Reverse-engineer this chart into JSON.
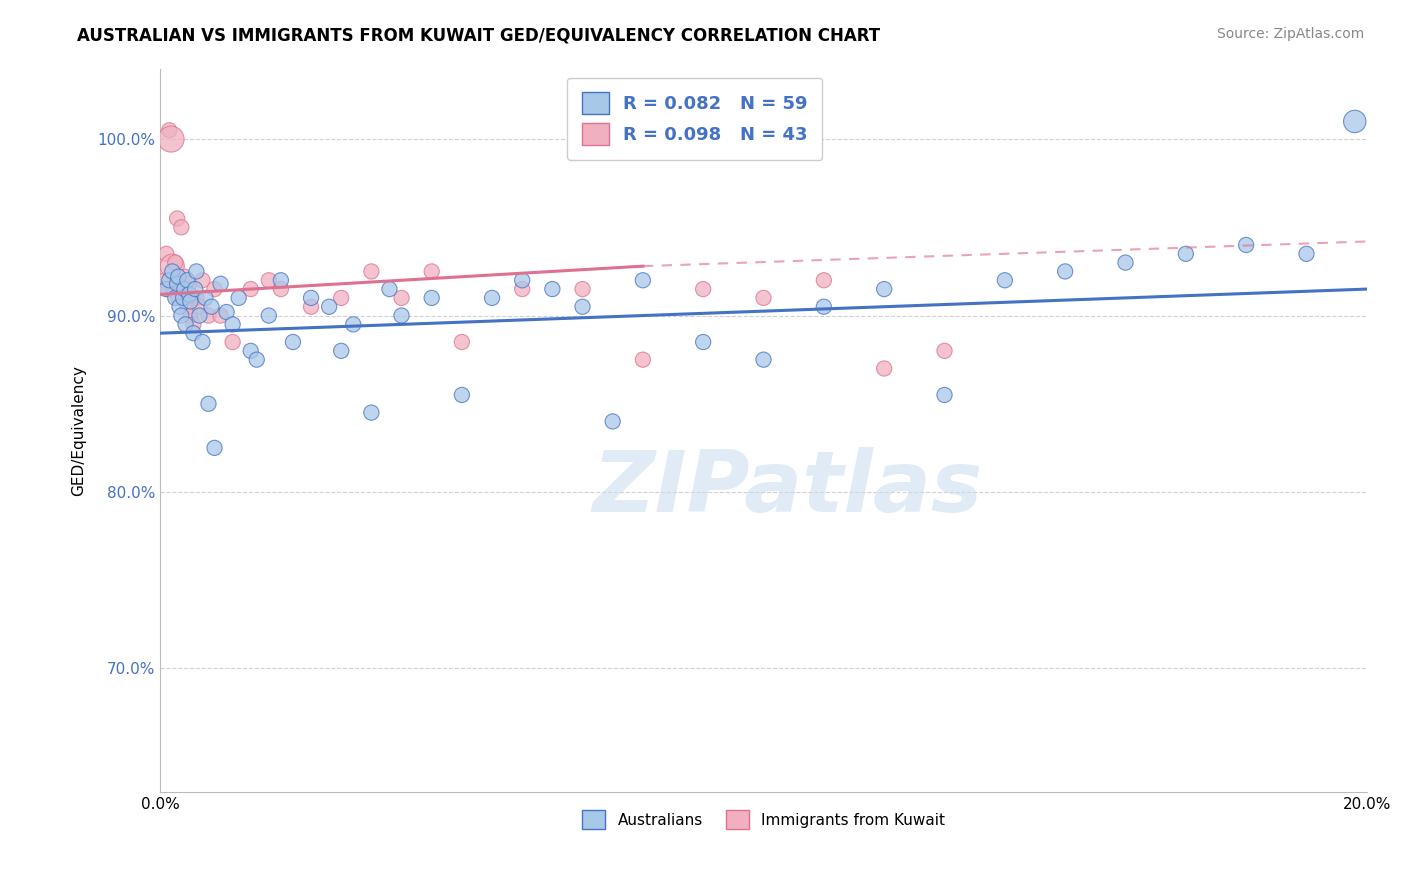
{
  "title": "AUSTRALIAN VS IMMIGRANTS FROM KUWAIT GED/EQUIVALENCY CORRELATION CHART",
  "source": "Source: ZipAtlas.com",
  "ylabel": "GED/Equivalency",
  "legend_label1": "Australians",
  "legend_label2": "Immigrants from Kuwait",
  "R1": 0.082,
  "N1": 59,
  "R2": 0.098,
  "N2": 43,
  "blue_color": "#A8C8E8",
  "pink_color": "#F0B0C0",
  "blue_line_color": "#4472C4",
  "pink_line_color": "#E07090",
  "blue_x": [
    0.1,
    0.15,
    0.2,
    0.25,
    0.28,
    0.3,
    0.32,
    0.35,
    0.38,
    0.4,
    0.42,
    0.45,
    0.48,
    0.5,
    0.55,
    0.58,
    0.6,
    0.65,
    0.7,
    0.75,
    0.8,
    0.85,
    0.9,
    1.0,
    1.1,
    1.2,
    1.3,
    1.5,
    1.6,
    1.8,
    2.0,
    2.2,
    2.5,
    2.8,
    3.0,
    3.2,
    3.5,
    3.8,
    4.0,
    4.5,
    5.0,
    5.5,
    6.0,
    6.5,
    7.0,
    7.5,
    8.0,
    9.0,
    10.0,
    11.0,
    12.0,
    13.0,
    14.0,
    15.0,
    16.0,
    17.0,
    18.0,
    19.0,
    19.8
  ],
  "blue_y": [
    91.5,
    92.0,
    92.5,
    91.0,
    91.8,
    92.2,
    90.5,
    90.0,
    91.0,
    91.5,
    89.5,
    92.0,
    91.2,
    90.8,
    89.0,
    91.5,
    92.5,
    90.0,
    88.5,
    91.0,
    85.0,
    90.5,
    82.5,
    91.8,
    90.2,
    89.5,
    91.0,
    88.0,
    87.5,
    90.0,
    92.0,
    88.5,
    91.0,
    90.5,
    88.0,
    89.5,
    84.5,
    91.5,
    90.0,
    91.0,
    85.5,
    91.0,
    92.0,
    91.5,
    90.5,
    84.0,
    92.0,
    88.5,
    87.5,
    90.5,
    91.5,
    85.5,
    92.0,
    92.5,
    93.0,
    93.5,
    94.0,
    93.5,
    101.0
  ],
  "pink_x": [
    0.08,
    0.1,
    0.12,
    0.15,
    0.18,
    0.2,
    0.22,
    0.25,
    0.28,
    0.3,
    0.32,
    0.35,
    0.38,
    0.4,
    0.42,
    0.45,
    0.48,
    0.5,
    0.55,
    0.6,
    0.65,
    0.7,
    0.8,
    0.9,
    1.0,
    1.2,
    1.5,
    1.8,
    2.0,
    2.5,
    3.0,
    3.5,
    4.0,
    4.5,
    5.0,
    6.0,
    7.0,
    8.0,
    9.0,
    10.0,
    11.0,
    12.0,
    13.0
  ],
  "pink_y": [
    92.0,
    93.5,
    91.5,
    100.5,
    100.0,
    92.8,
    91.5,
    93.0,
    95.5,
    91.0,
    91.8,
    95.0,
    91.5,
    92.2,
    91.0,
    90.5,
    91.8,
    90.0,
    89.5,
    91.0,
    90.5,
    92.0,
    90.0,
    91.5,
    90.0,
    88.5,
    91.5,
    92.0,
    91.5,
    90.5,
    91.0,
    92.5,
    91.0,
    92.5,
    88.5,
    91.5,
    91.5,
    87.5,
    91.5,
    91.0,
    92.0,
    87.0,
    88.0
  ],
  "blue_trend_x0": 0.0,
  "blue_trend_y0": 89.0,
  "blue_trend_x1": 20.0,
  "blue_trend_y1": 91.5,
  "pink_trend_x0": 0.0,
  "pink_trend_y0": 91.2,
  "pink_trend_x1": 8.0,
  "pink_trend_y1": 92.8,
  "pink_dash_x0": 8.0,
  "pink_dash_y0": 92.8,
  "pink_dash_x1": 20.0,
  "pink_dash_y1": 94.2,
  "xlim": [
    0.0,
    20.0
  ],
  "ylim": [
    63.0,
    104.0
  ],
  "yticks": [
    70.0,
    80.0,
    90.0,
    100.0
  ],
  "ytick_labels": [
    "70.0%",
    "80.0%",
    "90.0%",
    "100.0%"
  ],
  "grid_color": "#CCCCCC",
  "background_color": "#FFFFFF",
  "title_fontsize": 12,
  "source_fontsize": 10,
  "watermark_text": "ZIPatlas",
  "blue_sizes": [
    120,
    120,
    120,
    120,
    120,
    120,
    120,
    120,
    120,
    120,
    120,
    120,
    120,
    120,
    120,
    120,
    120,
    120,
    120,
    120,
    120,
    120,
    120,
    120,
    120,
    120,
    120,
    120,
    120,
    120,
    120,
    120,
    120,
    120,
    120,
    120,
    120,
    120,
    120,
    120,
    120,
    120,
    120,
    120,
    120,
    120,
    120,
    120,
    120,
    120,
    120,
    120,
    120,
    120,
    120,
    120,
    120,
    120,
    260
  ],
  "pink_sizes": [
    120,
    120,
    120,
    120,
    350,
    300,
    120,
    120,
    120,
    120,
    120,
    120,
    120,
    120,
    120,
    120,
    120,
    120,
    120,
    120,
    120,
    120,
    120,
    120,
    120,
    120,
    120,
    120,
    120,
    120,
    120,
    120,
    120,
    120,
    120,
    120,
    120,
    120,
    120,
    120,
    120,
    120,
    120
  ]
}
